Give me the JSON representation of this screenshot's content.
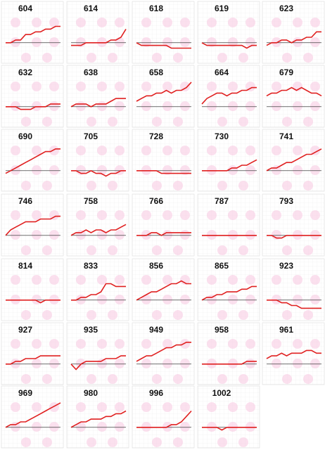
{
  "chart_data": [
    {
      "type": "line",
      "title": "604",
      "color": "#e02020",
      "ylim": [
        -6,
        10
      ],
      "values": [
        0,
        0,
        1,
        1,
        3,
        3,
        4,
        4,
        5,
        5,
        6,
        6
      ]
    },
    {
      "type": "line",
      "title": "614",
      "color": "#e02020",
      "ylim": [
        -6,
        10
      ],
      "values": [
        -1,
        -1,
        -1,
        0,
        0,
        0,
        0,
        0,
        1,
        1,
        2,
        5
      ]
    },
    {
      "type": "line",
      "title": "618",
      "color": "#e02020",
      "ylim": [
        -6,
        10
      ],
      "values": [
        0,
        -1,
        -1,
        -1,
        -1,
        -1,
        -1,
        -2,
        -2,
        -2,
        -2,
        -2
      ]
    },
    {
      "type": "line",
      "title": "619",
      "color": "#e02020",
      "ylim": [
        -6,
        10
      ],
      "values": [
        0,
        -1,
        -1,
        -1,
        -1,
        -1,
        -1,
        -1,
        -1,
        -2,
        -1,
        -1
      ]
    },
    {
      "type": "line",
      "title": "623",
      "color": "#e02020",
      "ylim": [
        -6,
        10
      ],
      "values": [
        -1,
        0,
        0,
        1,
        1,
        0,
        1,
        1,
        2,
        2,
        4,
        4
      ]
    },
    {
      "type": "line",
      "title": "632",
      "color": "#e02020",
      "ylim": [
        -6,
        10
      ],
      "values": [
        0,
        0,
        0,
        -1,
        -1,
        -1,
        0,
        0,
        0,
        1,
        1,
        1
      ]
    },
    {
      "type": "line",
      "title": "638",
      "color": "#e02020",
      "ylim": [
        -6,
        10
      ],
      "values": [
        0,
        1,
        1,
        1,
        0,
        1,
        1,
        1,
        2,
        3,
        3,
        3
      ]
    },
    {
      "type": "line",
      "title": "658",
      "color": "#e02020",
      "ylim": [
        -6,
        10
      ],
      "values": [
        2,
        3,
        4,
        4,
        5,
        5,
        6,
        5,
        6,
        6,
        7,
        9
      ]
    },
    {
      "type": "line",
      "title": "664",
      "color": "#e02020",
      "ylim": [
        -6,
        10
      ],
      "values": [
        1,
        3,
        4,
        5,
        5,
        4,
        5,
        5,
        6,
        6,
        7,
        7
      ]
    },
    {
      "type": "line",
      "title": "679",
      "color": "#e02020",
      "ylim": [
        -6,
        10
      ],
      "values": [
        4,
        5,
        5,
        6,
        6,
        7,
        6,
        7,
        6,
        5,
        5,
        4
      ]
    },
    {
      "type": "line",
      "title": "690",
      "color": "#e02020",
      "ylim": [
        -6,
        10
      ],
      "values": [
        -1,
        0,
        1,
        2,
        3,
        4,
        5,
        6,
        7,
        7,
        8,
        8
      ]
    },
    {
      "type": "line",
      "title": "705",
      "color": "#e02020",
      "ylim": [
        -6,
        10
      ],
      "values": [
        0,
        0,
        -1,
        -1,
        0,
        -1,
        -1,
        -2,
        -1,
        -1,
        0,
        0
      ]
    },
    {
      "type": "line",
      "title": "728",
      "color": "#e02020",
      "ylim": [
        -6,
        10
      ],
      "values": [
        0,
        0,
        0,
        0,
        0,
        -1,
        -1,
        -1,
        -1,
        -1,
        -1,
        -1
      ]
    },
    {
      "type": "line",
      "title": "730",
      "color": "#e02020",
      "ylim": [
        -6,
        10
      ],
      "values": [
        0,
        0,
        0,
        0,
        0,
        0,
        1,
        1,
        2,
        2,
        3,
        4
      ]
    },
    {
      "type": "line",
      "title": "741",
      "color": "#e02020",
      "ylim": [
        -6,
        10
      ],
      "values": [
        0,
        1,
        1,
        2,
        3,
        3,
        4,
        5,
        6,
        6,
        7,
        8
      ]
    },
    {
      "type": "line",
      "title": "746",
      "color": "#e02020",
      "ylim": [
        -6,
        10
      ],
      "values": [
        0,
        2,
        3,
        4,
        5,
        5,
        5,
        6,
        6,
        6,
        7,
        7
      ]
    },
    {
      "type": "line",
      "title": "758",
      "color": "#e02020",
      "ylim": [
        -6,
        10
      ],
      "values": [
        0,
        1,
        1,
        2,
        1,
        2,
        2,
        1,
        2,
        2,
        3,
        4
      ]
    },
    {
      "type": "line",
      "title": "766",
      "color": "#e02020",
      "ylim": [
        -6,
        10
      ],
      "values": [
        0,
        0,
        0,
        1,
        1,
        0,
        1,
        1,
        1,
        1,
        1,
        1
      ]
    },
    {
      "type": "line",
      "title": "787",
      "color": "#e02020",
      "ylim": [
        -6,
        10
      ],
      "values": [
        0,
        0,
        0,
        0,
        0,
        0,
        0,
        0,
        0,
        0,
        0,
        0
      ]
    },
    {
      "type": "line",
      "title": "793",
      "color": "#e02020",
      "ylim": [
        -6,
        10
      ],
      "values": [
        0,
        0,
        -1,
        -1,
        0,
        0,
        0,
        0,
        0,
        0,
        0,
        0
      ]
    },
    {
      "type": "line",
      "title": "814",
      "color": "#e02020",
      "ylim": [
        -6,
        10
      ],
      "values": [
        0,
        0,
        0,
        0,
        0,
        0,
        0,
        -1,
        0,
        0,
        0,
        0
      ]
    },
    {
      "type": "line",
      "title": "833",
      "color": "#e02020",
      "ylim": [
        -6,
        10
      ],
      "values": [
        0,
        0,
        1,
        1,
        2,
        2,
        3,
        6,
        6,
        5,
        5,
        5
      ]
    },
    {
      "type": "line",
      "title": "856",
      "color": "#e02020",
      "ylim": [
        -6,
        10
      ],
      "values": [
        0,
        1,
        2,
        3,
        3,
        4,
        5,
        6,
        6,
        7,
        6,
        6
      ]
    },
    {
      "type": "line",
      "title": "865",
      "color": "#e02020",
      "ylim": [
        -6,
        10
      ],
      "values": [
        0,
        1,
        1,
        2,
        2,
        3,
        3,
        3,
        4,
        4,
        5,
        5
      ]
    },
    {
      "type": "line",
      "title": "923",
      "color": "#e02020",
      "ylim": [
        -6,
        10
      ],
      "values": [
        0,
        0,
        0,
        -1,
        -1,
        -2,
        -2,
        -3,
        -3,
        -3,
        -3,
        -3
      ]
    },
    {
      "type": "line",
      "title": "927",
      "color": "#e02020",
      "ylim": [
        -6,
        10
      ],
      "values": [
        0,
        0,
        1,
        1,
        2,
        2,
        2,
        3,
        3,
        3,
        3,
        3
      ]
    },
    {
      "type": "line",
      "title": "935",
      "color": "#e02020",
      "ylim": [
        -6,
        10
      ],
      "values": [
        0,
        -2,
        0,
        1,
        1,
        1,
        1,
        2,
        2,
        2,
        3,
        3
      ]
    },
    {
      "type": "line",
      "title": "949",
      "color": "#e02020",
      "ylim": [
        -6,
        10
      ],
      "values": [
        1,
        2,
        3,
        3,
        4,
        5,
        6,
        6,
        7,
        7,
        8,
        8
      ]
    },
    {
      "type": "line",
      "title": "958",
      "color": "#e02020",
      "ylim": [
        -6,
        10
      ],
      "values": [
        0,
        0,
        0,
        0,
        0,
        0,
        0,
        0,
        0,
        1,
        1,
        1
      ]
    },
    {
      "type": "line",
      "title": "961",
      "color": "#e02020",
      "ylim": [
        -6,
        10
      ],
      "values": [
        2,
        3,
        3,
        4,
        3,
        4,
        4,
        4,
        5,
        5,
        4,
        4
      ]
    },
    {
      "type": "line",
      "title": "969",
      "color": "#e02020",
      "ylim": [
        -6,
        10
      ],
      "values": [
        0,
        1,
        1,
        2,
        2,
        3,
        4,
        5,
        6,
        7,
        8,
        9
      ]
    },
    {
      "type": "line",
      "title": "980",
      "color": "#e02020",
      "ylim": [
        -6,
        10
      ],
      "values": [
        0,
        1,
        2,
        2,
        3,
        3,
        3,
        4,
        4,
        5,
        5,
        6
      ]
    },
    {
      "type": "line",
      "title": "996",
      "color": "#e02020",
      "ylim": [
        -6,
        10
      ],
      "values": [
        0,
        0,
        0,
        0,
        0,
        0,
        0,
        1,
        1,
        2,
        4,
        6
      ]
    },
    {
      "type": "line",
      "title": "1002",
      "color": "#e02020",
      "ylim": [
        -6,
        10
      ],
      "values": [
        0,
        0,
        0,
        0,
        -1,
        0,
        0,
        0,
        0,
        0,
        0,
        0
      ]
    }
  ]
}
